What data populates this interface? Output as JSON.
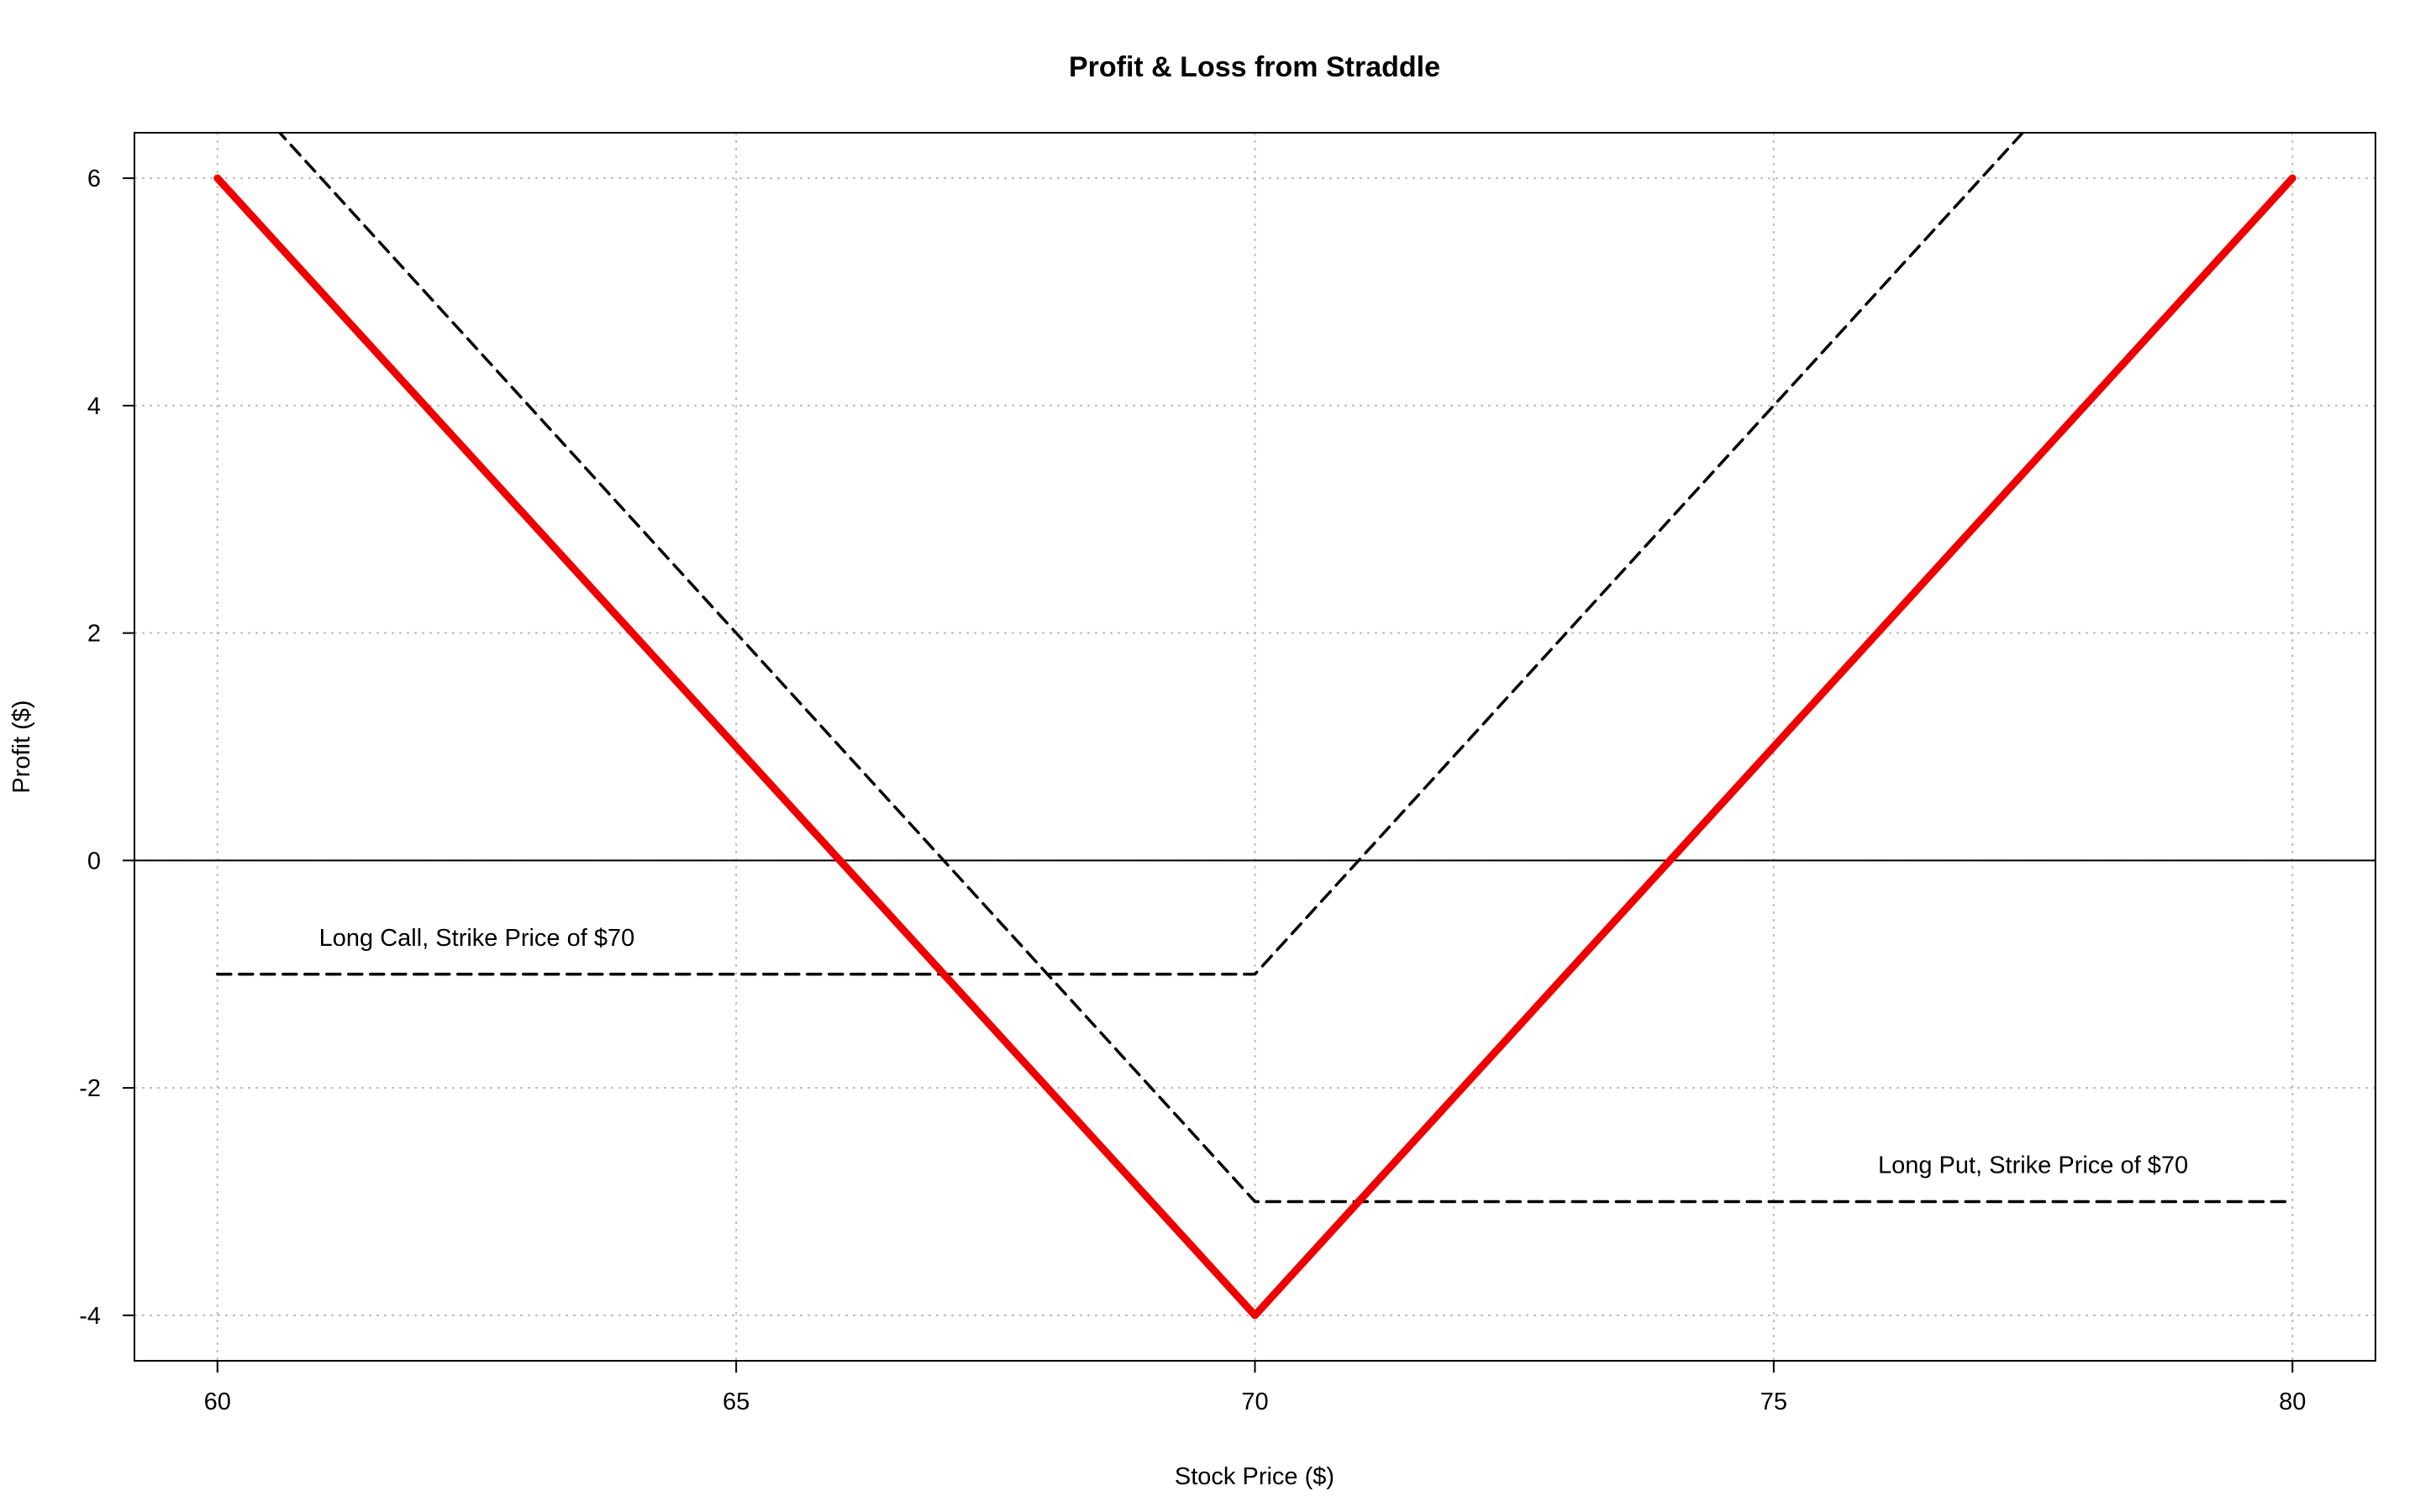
{
  "chart_data": {
    "type": "line",
    "title": "Profit & Loss from Straddle",
    "xlabel": "Stock Price ($)",
    "ylabel": "Profit ($)",
    "xlim": [
      59.2,
      80.8
    ],
    "ylim": [
      -4.4,
      6.4
    ],
    "xticks": [
      60,
      65,
      70,
      75,
      80
    ],
    "yticks": [
      -4,
      -2,
      0,
      2,
      4,
      6
    ],
    "grid": true,
    "legend": "none",
    "horizontal_reference_line": 0,
    "colors": {
      "straddle": "#ee0000",
      "components": "#000000"
    },
    "series": [
      {
        "style": "solid",
        "points": [
          [
            60,
            6
          ],
          [
            70,
            -4
          ],
          [
            80,
            6
          ]
        ]
      },
      {
        "style": "dashed",
        "points": [
          [
            60,
            -1
          ],
          [
            70,
            -1
          ],
          [
            80,
            9
          ]
        ]
      },
      {
        "style": "dashed",
        "points": [
          [
            60,
            7
          ],
          [
            70,
            -3
          ],
          [
            80,
            -3
          ]
        ]
      }
    ],
    "annotations": [
      {
        "text": "Long Call, Strike Price of $70",
        "x": 62.5,
        "y": -0.75
      },
      {
        "text": "Long Put, Strike Price of $70",
        "x": 77.5,
        "y": -2.75
      }
    ]
  }
}
